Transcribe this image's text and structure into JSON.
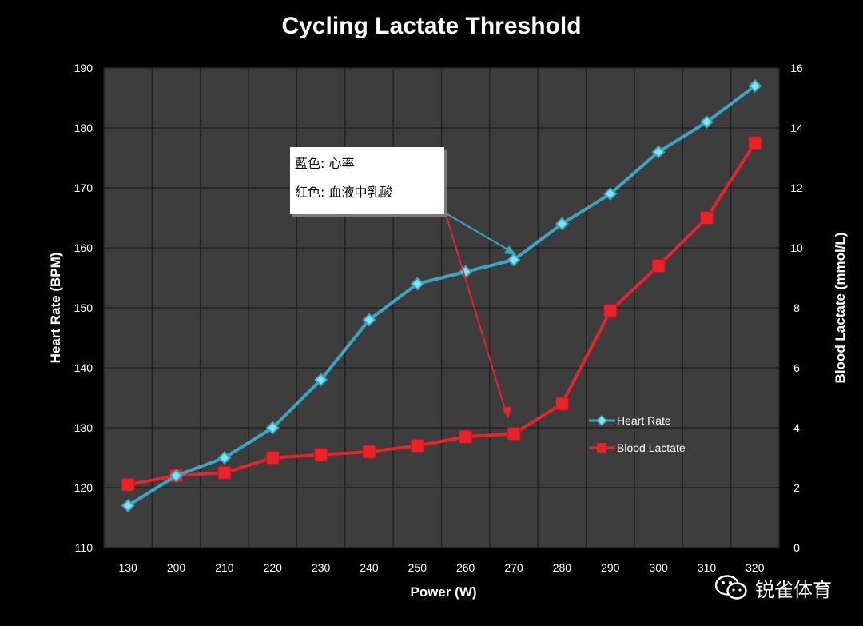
{
  "chart_data": {
    "type": "line",
    "title": "Cycling Lactate Threshold",
    "xlabel": "Power (W)",
    "ylabel_left": "Heart Rate (BPM)",
    "ylabel_right": "Blood Lactate (mmol/L)",
    "categories": [
      "130",
      "200",
      "210",
      "220",
      "230",
      "240",
      "250",
      "260",
      "270",
      "280",
      "290",
      "300",
      "310",
      "320"
    ],
    "y_left_range": [
      110,
      190
    ],
    "y_left_ticks": [
      110,
      120,
      130,
      140,
      150,
      160,
      170,
      180,
      190
    ],
    "y_right_range": [
      0,
      16
    ],
    "y_right_ticks": [
      0,
      2,
      4,
      6,
      8,
      10,
      12,
      14,
      16
    ],
    "grid": true,
    "legend_position": "inside-right",
    "series": [
      {
        "name": "Heart Rate",
        "axis": "left",
        "color": "#3aa6c4",
        "marker": "diamond",
        "values": [
          117,
          122,
          125,
          130,
          138,
          148,
          154,
          156,
          158,
          164,
          169,
          176,
          181,
          187
        ]
      },
      {
        "name": "Blood Lactate",
        "axis": "right",
        "color": "#e8242a",
        "marker": "square",
        "values": [
          2.1,
          2.4,
          2.5,
          3.0,
          3.1,
          3.2,
          3.4,
          3.7,
          3.8,
          4.8,
          7.9,
          9.4,
          11.0,
          13.5
        ]
      }
    ]
  },
  "annotation": {
    "line1": "藍色: 心率",
    "line2": "紅色: 血液中乳酸"
  },
  "watermark": {
    "text": "锐雀体育"
  }
}
